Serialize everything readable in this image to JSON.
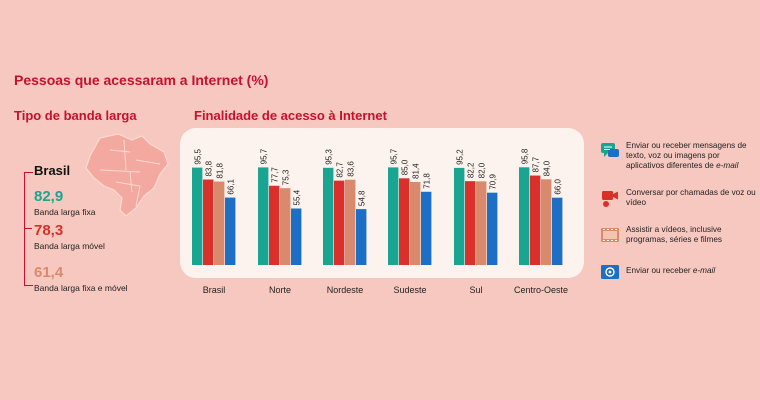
{
  "title": "Pessoas que acessaram a Internet (%)",
  "left_panel": {
    "title": "Tipo de banda larga",
    "region": "Brasil",
    "items": [
      {
        "value": "82,9",
        "label": "Banda larga fixa",
        "color": "#1aa592"
      },
      {
        "value": "78,3",
        "label": "Banda larga móvel",
        "color": "#d9302c"
      },
      {
        "value": "61,4",
        "label": "Banda larga fixa e móvel",
        "color": "#d98a6c"
      }
    ]
  },
  "chart_title": "Finalidade de acesso à Internet",
  "chart_data": {
    "type": "bar",
    "categories": [
      "Brasil",
      "Norte",
      "Nordeste",
      "Sudeste",
      "Sul",
      "Centro-Oeste"
    ],
    "ylim": [
      0,
      100
    ],
    "series": [
      {
        "name": "Enviar ou receber mensagens de texto, voz ou imagens por aplicativos diferentes de e-mail",
        "color": "#1aa592",
        "values": [
          95.5,
          95.7,
          95.3,
          95.7,
          95.2,
          95.8
        ],
        "labels": [
          "95,5",
          "95,7",
          "95,3",
          "95,7",
          "95,2",
          "95,8"
        ]
      },
      {
        "name": "Conversar por chamadas de voz ou vídeo",
        "color": "#d9302c",
        "values": [
          83.8,
          77.7,
          82.7,
          85.0,
          82.2,
          87.7
        ],
        "labels": [
          "83,8",
          "77,7",
          "82,7",
          "85,0",
          "82,2",
          "87,7"
        ]
      },
      {
        "name": "Assistir a vídeos, inclusive programas, séries e filmes",
        "color": "#d98a6c",
        "values": [
          81.8,
          75.3,
          83.6,
          81.4,
          82.0,
          84.0
        ],
        "labels": [
          "81,8",
          "75,3",
          "83,6",
          "81,4",
          "82,0",
          "84,0"
        ]
      },
      {
        "name": "Enviar ou receber e-mail",
        "color": "#1c6fc4",
        "values": [
          66.1,
          55.4,
          54.8,
          71.8,
          70.9,
          66.0
        ],
        "labels": [
          "66,1",
          "55,4",
          "54,8",
          "71,8",
          "70,9",
          "66,0"
        ]
      }
    ]
  },
  "legend": [
    {
      "text": "Enviar ou receber mensagens de texto, voz ou imagens por aplicativos diferentes de ",
      "italic": "e-mail",
      "icon": "message-icon",
      "color": "#1aa592"
    },
    {
      "text": "Conversar por chamadas de voz ou vídeo",
      "italic": "",
      "icon": "video-call-icon",
      "color": "#d9302c"
    },
    {
      "text": "Assistir a vídeos, inclusive programas, séries e filmes",
      "italic": "",
      "icon": "film-icon",
      "color": "#d98a6c"
    },
    {
      "text": "Enviar ou receber ",
      "italic": "e-mail",
      "icon": "email-icon",
      "color": "#1c6fc4"
    }
  ]
}
